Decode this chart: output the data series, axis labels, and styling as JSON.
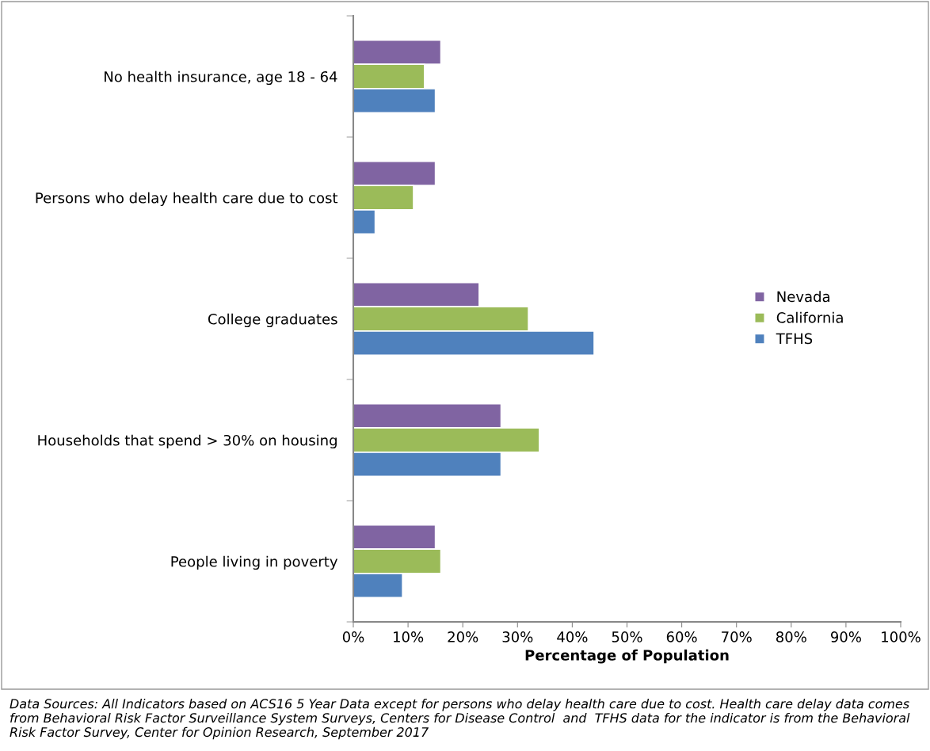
{
  "chart_data": {
    "type": "bar",
    "orientation": "horizontal",
    "xlabel": "Percentage of Population",
    "categories": [
      "No health insurance, age 18 - 64",
      "Persons who delay health care due to cost",
      "College graduates",
      "Households that spend > 30% on housing",
      "People living in poverty"
    ],
    "series": [
      {
        "name": "Nevada",
        "color": "#8064a2",
        "values": [
          16,
          15,
          23,
          27,
          15
        ]
      },
      {
        "name": "California",
        "color": "#9bbb59",
        "values": [
          13,
          11,
          32,
          34,
          16
        ]
      },
      {
        "name": "TFHS",
        "color": "#4f81bd",
        "values": [
          15,
          4,
          44,
          27,
          9
        ]
      }
    ],
    "xlim": [
      0,
      100
    ],
    "xticks": [
      {
        "value": 0,
        "label": "0%"
      },
      {
        "value": 10,
        "label": "10%"
      },
      {
        "value": 20,
        "label": "20%"
      },
      {
        "value": 30,
        "label": "30%"
      },
      {
        "value": 40,
        "label": "40%"
      },
      {
        "value": 50,
        "label": "50%"
      },
      {
        "value": 60,
        "label": "60%"
      },
      {
        "value": 70,
        "label": "70%"
      },
      {
        "value": 80,
        "label": "80%"
      },
      {
        "value": 90,
        "label": "90%"
      },
      {
        "value": 100,
        "label": "100%"
      }
    ],
    "grid": false,
    "legend": "right",
    "annotations": [
      "Data Sources: All Indicators based on ACS16 5 Year Data except for persons who delay health care due to cost. Health care delay data comes from Behavioral Risk Factor Surveillance System Surveys, Centers for Disease Control  and  TFHS data for the indicator is from the Behavioral Risk Factor Survey, Center for Opinion Research, September 2017"
    ]
  }
}
